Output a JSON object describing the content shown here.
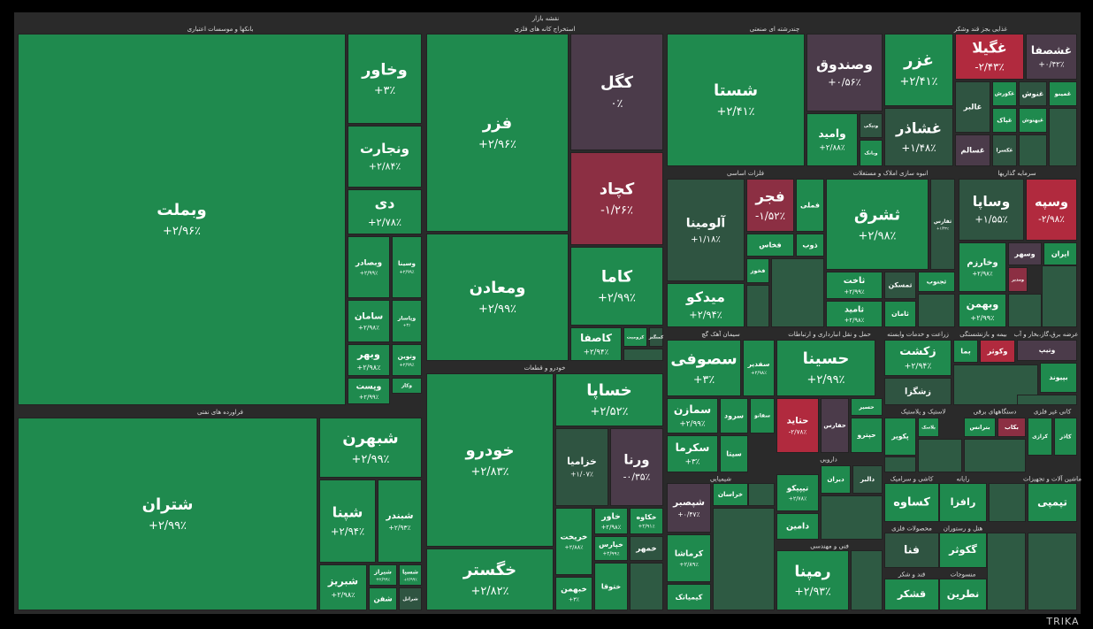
{
  "header": {
    "title": "نقشه بازار"
  },
  "watermark": "TRIKA",
  "sectors": [
    {
      "name": "بانکها و موسسات اعتباری",
      "tiles": [
        {
          "name": "وبملت",
          "change": "+۲/۹۶٪"
        },
        {
          "name": "وخاور",
          "change": "+۳٪"
        },
        {
          "name": "ونجارت",
          "change": "+۲/۸۴٪"
        },
        {
          "name": "دی",
          "change": "+۲/۷۸٪"
        },
        {
          "name": "وبصادر",
          "change": "+۲/۹۹٪"
        },
        {
          "name": "وسینا",
          "change": "+۲/۹۹٪"
        },
        {
          "name": "سامان",
          "change": "+۲/۹۸٪"
        },
        {
          "name": "وپاسار",
          "change": "+۳٪"
        },
        {
          "name": "وبهر",
          "change": "+۲/۹۸٪"
        },
        {
          "name": "وتوین",
          "change": "+۲/۹۹٪"
        },
        {
          "name": "وپست",
          "change": "+۲/۹۹٪"
        },
        {
          "name": "وکار",
          "change": "+۲/۹۸٪"
        }
      ]
    },
    {
      "name": "فراورده های نفتی",
      "tiles": [
        {
          "name": "شتران",
          "change": "+۲/۹۹٪"
        },
        {
          "name": "شبهرن",
          "change": "+۲/۹۹٪"
        },
        {
          "name": "شپنا",
          "change": "+۲/۹۴٪"
        },
        {
          "name": "شبندر",
          "change": "+۲/۹۳٪"
        },
        {
          "name": "شبریز",
          "change": "+۲/۹۸٪"
        },
        {
          "name": "شیراز",
          "change": "+۲/۹۹٪"
        },
        {
          "name": "شسپا",
          "change": "+۲/۹۹٪"
        },
        {
          "name": "شفن"
        },
        {
          "name": "شرانل"
        }
      ]
    },
    {
      "name": "استخراج کانه های فلزی",
      "tiles": [
        {
          "name": "فزر",
          "change": "+۲/۹۶٪"
        },
        {
          "name": "کگل",
          "change": "۰٪"
        },
        {
          "name": "کچاد",
          "change": "-۱/۲۶٪"
        },
        {
          "name": "ومعادن",
          "change": "+۲/۹۹٪"
        },
        {
          "name": "کاما",
          "change": "+۲/۹۹٪"
        },
        {
          "name": "کاصفا",
          "change": "+۲/۹۴٪"
        },
        {
          "name": "کرومیت"
        },
        {
          "name": "کمنگنز"
        }
      ]
    },
    {
      "name": "خودرو و قطعات",
      "tiles": [
        {
          "name": "خودرو",
          "change": "+۲/۸۳٪"
        },
        {
          "name": "خگستر",
          "change": "+۲/۸۲٪"
        },
        {
          "name": "خساپا",
          "change": "+۲/۵۲٪"
        },
        {
          "name": "خزامیا",
          "change": "+۱/۰۷٪"
        },
        {
          "name": "ورنا",
          "change": "-۰/۳۵٪"
        },
        {
          "name": "خریخت",
          "change": "+۲/۸۸٪"
        },
        {
          "name": "خاور",
          "change": "+۲/۹۸٪"
        },
        {
          "name": "خکاوه",
          "change": "+۲/۹۱٪"
        },
        {
          "name": "خپارس",
          "change": "+۲/۹۹٪"
        },
        {
          "name": "خمهر"
        },
        {
          "name": "خبهمن",
          "change": "+۳٪"
        },
        {
          "name": "ختوقا"
        }
      ]
    },
    {
      "name": "چندرشته ای صنعتی",
      "tiles": [
        {
          "name": "شستا",
          "change": "+۲/۴۱٪"
        },
        {
          "name": "وصندوق",
          "change": "+۰/۵۶٪"
        },
        {
          "name": "وامید",
          "change": "+۲/۸۸٪"
        },
        {
          "name": "ونیکی"
        },
        {
          "name": "وبانک"
        }
      ]
    },
    {
      "name": "غذایی بجز قند وشکر",
      "tiles": [
        {
          "name": "غزر",
          "change": "+۲/۴۱٪"
        },
        {
          "name": "غشاذر",
          "change": "+۱/۴۸٪"
        },
        {
          "name": "غگیلا",
          "change": "-۲/۴۳٪"
        },
        {
          "name": "غشصفا",
          "change": "+۰/۴۲٪"
        },
        {
          "name": "غالبر"
        },
        {
          "name": "غکورش"
        },
        {
          "name": "غنوش"
        },
        {
          "name": "غمینو"
        },
        {
          "name": "غپاک"
        },
        {
          "name": "غسالم"
        },
        {
          "name": "غکسرا"
        },
        {
          "name": "غبهنوش"
        }
      ]
    },
    {
      "name": "فلزات اساسی",
      "tiles": [
        {
          "name": "آلومینا",
          "change": "+۱/۱۸٪"
        },
        {
          "name": "فجر",
          "change": "-۱/۵۲٪"
        },
        {
          "name": "فملی"
        },
        {
          "name": "فخاس"
        },
        {
          "name": "ذوب"
        },
        {
          "name": "فخوز"
        },
        {
          "name": "میدکو",
          "change": "+۲/۹۴٪"
        }
      ]
    },
    {
      "name": "انبوه سازی املاک و مستغلات",
      "tiles": [
        {
          "name": "ثشرق",
          "change": "+۲/۹۸٪"
        },
        {
          "name": "ثفارس",
          "change": "+۱/۴۳٪"
        },
        {
          "name": "ثاخت",
          "change": "+۲/۹۹٪"
        },
        {
          "name": "ثامید",
          "change": "+۲/۹۸٪"
        },
        {
          "name": "ثمسکن"
        },
        {
          "name": "ثامان"
        },
        {
          "name": "ثجنوب"
        }
      ]
    },
    {
      "name": "سرمایه گذاریها",
      "tiles": [
        {
          "name": "وساپا",
          "change": "+۱/۵۵٪"
        },
        {
          "name": "وسپه",
          "change": "-۲/۹۸٪"
        },
        {
          "name": "وخارزم",
          "change": "+۲/۹۸٪"
        },
        {
          "name": "وبهمن",
          "change": "+۲/۹۹٪"
        },
        {
          "name": "ومدیر"
        },
        {
          "name": "وسهر"
        },
        {
          "name": "ایران"
        }
      ]
    },
    {
      "name": "سیمان آهک گچ",
      "tiles": [
        {
          "name": "سصوفی",
          "change": "+۳٪"
        },
        {
          "name": "سفدیر",
          "change": "+۲/۹۸٪"
        },
        {
          "name": "سمازن",
          "change": "+۲/۹۹٪"
        },
        {
          "name": "سرود"
        },
        {
          "name": "سفانو"
        },
        {
          "name": "سکرما",
          "change": "+۳٪"
        },
        {
          "name": "سیتا"
        }
      ]
    },
    {
      "name": "حمل و نقل انبارداری و ارتباطات",
      "tiles": [
        {
          "name": "حسینا",
          "change": "+۲/۹۹٪"
        },
        {
          "name": "حتاید",
          "change": "-۲/۷۸٪"
        },
        {
          "name": "حفارس"
        },
        {
          "name": "حسیر"
        },
        {
          "name": "حپترو"
        }
      ]
    },
    {
      "name": "زراعت و خدمات وابسته",
      "tiles": [
        {
          "name": "زکشت",
          "change": "+۲/۹۴٪"
        },
        {
          "name": "زشگزا"
        }
      ]
    },
    {
      "name": "بیمه و بازنشستگی",
      "tiles": [
        {
          "name": "بما"
        },
        {
          "name": "وکوثر"
        }
      ]
    },
    {
      "name": "عرضه برق،گاز،بخار و آب",
      "tiles": [
        {
          "name": "وتیپ"
        },
        {
          "name": "بپیوند"
        }
      ]
    },
    {
      "name": "لاستیک و پلاستیک",
      "tiles": [
        {
          "name": "پکویر"
        },
        {
          "name": "پلاسک"
        }
      ]
    },
    {
      "name": "دستگاههای برقی",
      "tiles": [
        {
          "name": "بترانس"
        },
        {
          "name": "بکاب"
        }
      ]
    },
    {
      "name": "کانی غیر فلزی",
      "tiles": [
        {
          "name": "کرازی"
        },
        {
          "name": "کاذر"
        }
      ]
    },
    {
      "name": "دارویی",
      "tiles": [
        {
          "name": "دیران"
        },
        {
          "name": "دالبر"
        }
      ]
    },
    {
      "name": "شیمیایی",
      "tiles": [
        {
          "name": "شپصبر",
          "change": "+۰/۴۷٪"
        },
        {
          "name": "خراسان"
        },
        {
          "name": "کرماشا",
          "change": "+۲/۸۹٪"
        },
        {
          "name": "کیمیاتک"
        }
      ]
    },
    {
      "name": "فنی و مهندسی",
      "tiles": [
        {
          "name": "رمپنا",
          "change": "+۲/۹۳٪"
        },
        {
          "name": "تیپیکو",
          "change": "+۲/۷۸٪"
        },
        {
          "name": "دامین"
        }
      ]
    },
    {
      "name": "کاشی و سرامیک",
      "tiles": [
        {
          "name": "کساوه"
        }
      ]
    },
    {
      "name": "رایانه",
      "tiles": [
        {
          "name": "رافزا"
        }
      ]
    },
    {
      "name": "ماشین آلات و تجهیزات",
      "tiles": [
        {
          "name": "تپمپی"
        }
      ]
    },
    {
      "name": "محصولات فلزی",
      "tiles": [
        {
          "name": "فنا"
        }
      ]
    },
    {
      "name": "هتل و رستوران",
      "tiles": [
        {
          "name": "گکوثر"
        }
      ]
    },
    {
      "name": "قند و شکر",
      "tiles": [
        {
          "name": "قشکر"
        }
      ]
    },
    {
      "name": "منسوجات",
      "tiles": [
        {
          "name": "نطرین"
        }
      ]
    }
  ]
}
